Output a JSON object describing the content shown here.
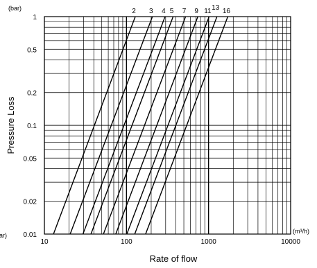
{
  "chart_data": {
    "type": "line",
    "x_scale": "log",
    "y_scale": "log",
    "xlim": [
      10,
      10000
    ],
    "ylim": [
      0.01,
      1
    ],
    "xlabel": "Rate of flow",
    "ylabel": "Pressure Loss",
    "x_unit": "(m³/h)",
    "y_unit": "(bar)",
    "y_unit_bottom": "(bar)",
    "grid": true,
    "x_ticks": [
      "10",
      "100",
      "1000",
      "10000"
    ],
    "y_ticks": [
      "1",
      "0.5",
      "0.2",
      "0.1",
      "0.05",
      "0.02",
      "0.01"
    ],
    "series": [
      {
        "name": "2",
        "x": [
          12.9,
          128
        ]
      },
      {
        "name": "3",
        "x": [
          20.6,
          207
        ]
      },
      {
        "name": "4",
        "x": [
          29.5,
          295
        ]
      },
      {
        "name": "5",
        "x": [
          36.9,
          370
        ]
      },
      {
        "name": "7",
        "x": [
          52.4,
          525
        ]
      },
      {
        "name": "9",
        "x": [
          74.0,
          740
        ]
      },
      {
        "name": "11",
        "x": [
          101,
          1015
        ]
      },
      {
        "name": "13",
        "x": [
          126,
          1265
        ]
      },
      {
        "name": "16",
        "x": [
          171,
          1715
        ]
      }
    ],
    "series_y": [
      0.01,
      1
    ]
  }
}
